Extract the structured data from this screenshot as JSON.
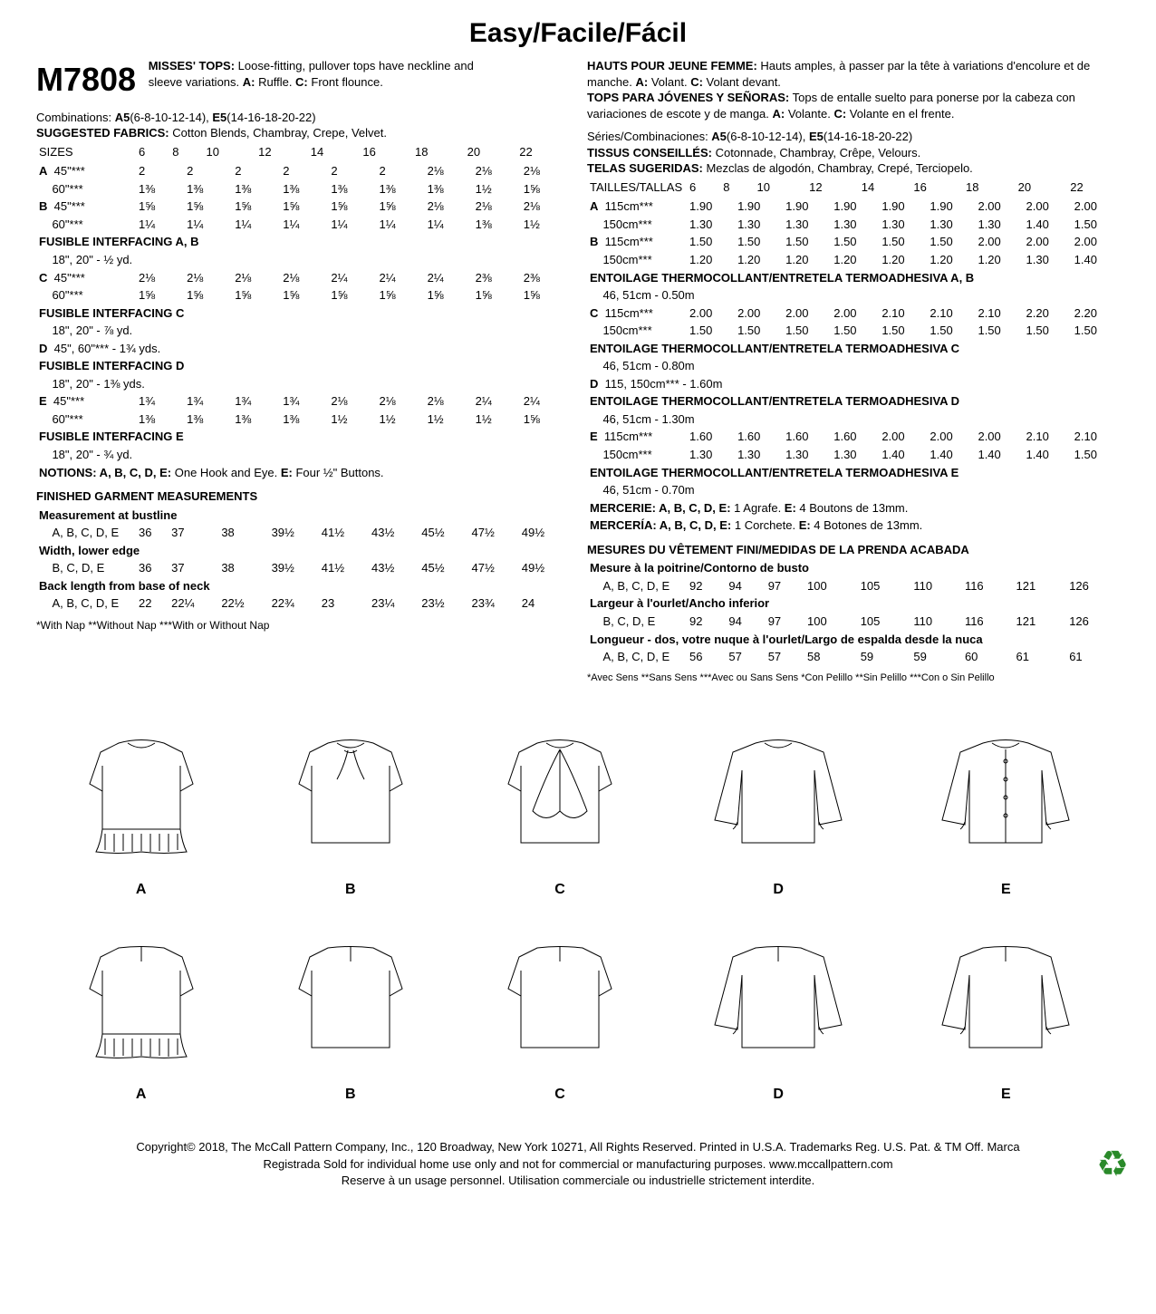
{
  "title": "Easy/Facile/Fácil",
  "pattern_number": "M7808",
  "desc_en": "<b>MISSES' TOPS:</b> Loose-fitting, pullover tops have neckline and sleeve variations. <b>A:</b> Ruffle. <b>C:</b> Front flounce.",
  "desc_fr": "<b>HAUTS POUR JEUNE FEMME:</b> Hauts amples, à passer par la tête à variations d'encolure et de manche. <b>A:</b> Volant. <b>C:</b> Volant devant.",
  "desc_es": "<b>TOPS PARA JÓVENES Y SEÑORAS:</b> Tops de entalle suelto para ponerse por la cabeza con variaciones de escote y de manga. <b>A:</b> Volante. <b>C:</b> Volante en el frente.",
  "combos_en": "Combinations: <b>A5</b>(6-8-10-12-14), <b>E5</b>(14-16-18-20-22)",
  "combos_fr": "Séries/Combinaciones: <b>A5</b>(6-8-10-12-14), <b>E5</b>(14-16-18-20-22)",
  "fabrics_en": "<b>SUGGESTED FABRICS:</b> Cotton Blends, Chambray, Crepe, Velvet.",
  "fabrics_fr": "<b>TISSUS CONSEILLÉS:</b> Cotonnade, Chambray, Crêpe, Velours.",
  "fabrics_es": "<b>TELAS SUGERIDAS:</b> Mezclas de algodón, Chambray, Crepé, Terciopelo.",
  "sizes_en_header": [
    "SIZES",
    "6",
    "8",
    "10",
    "12",
    "14",
    "16",
    "18",
    "20",
    "22"
  ],
  "sizes_fr_header": [
    "TAILLES/TALLAS",
    "6",
    "8",
    "10",
    "12",
    "14",
    "16",
    "18",
    "20",
    "22"
  ],
  "rows_en": [
    {
      "bold": "A",
      "label": "45\"***",
      "v": [
        "2",
        "2",
        "2",
        "2",
        "2",
        "2",
        "2⅛",
        "2⅛",
        "2⅛"
      ]
    },
    {
      "bold": "",
      "label": "60\"***",
      "v": [
        "1⅜",
        "1⅜",
        "1⅜",
        "1⅜",
        "1⅜",
        "1⅜",
        "1⅜",
        "1½",
        "1⅝"
      ]
    },
    {
      "bold": "B",
      "label": "45\"***",
      "v": [
        "1⅝",
        "1⅝",
        "1⅝",
        "1⅝",
        "1⅝",
        "1⅝",
        "2⅛",
        "2⅛",
        "2⅛"
      ]
    },
    {
      "bold": "",
      "label": "60\"***",
      "v": [
        "1¼",
        "1¼",
        "1¼",
        "1¼",
        "1¼",
        "1¼",
        "1¼",
        "1⅜",
        "1½"
      ]
    },
    {
      "span": "<b>FUSIBLE INTERFACING A, B</b>"
    },
    {
      "span": "&nbsp;&nbsp;&nbsp;&nbsp;18\", 20\" - ½ yd."
    },
    {
      "bold": "C",
      "label": "45\"***",
      "v": [
        "2⅛",
        "2⅛",
        "2⅛",
        "2⅛",
        "2¼",
        "2¼",
        "2¼",
        "2⅜",
        "2⅜"
      ]
    },
    {
      "bold": "",
      "label": "60\"***",
      "v": [
        "1⅝",
        "1⅝",
        "1⅝",
        "1⅝",
        "1⅝",
        "1⅝",
        "1⅝",
        "1⅝",
        "1⅝"
      ]
    },
    {
      "span": "<b>FUSIBLE INTERFACING C</b>"
    },
    {
      "span": "&nbsp;&nbsp;&nbsp;&nbsp;18\", 20\" - ⅞ yd."
    },
    {
      "span": "<b>D</b>&nbsp;&nbsp;45\", 60\"*** - 1¾ yds."
    },
    {
      "span": "<b>FUSIBLE INTERFACING D</b>"
    },
    {
      "span": "&nbsp;&nbsp;&nbsp;&nbsp;18\", 20\" - 1⅜ yds."
    },
    {
      "bold": "E",
      "label": "45\"***",
      "v": [
        "1¾",
        "1¾",
        "1¾",
        "1¾",
        "2⅛",
        "2⅛",
        "2⅛",
        "2¼",
        "2¼"
      ]
    },
    {
      "bold": "",
      "label": "60\"***",
      "v": [
        "1⅜",
        "1⅜",
        "1⅜",
        "1⅜",
        "1½",
        "1½",
        "1½",
        "1½",
        "1⅝"
      ]
    },
    {
      "span": "<b>FUSIBLE INTERFACING E</b>"
    },
    {
      "span": "&nbsp;&nbsp;&nbsp;&nbsp;18\", 20\" - ¾ yd."
    },
    {
      "span": "<b>NOTIONS: A, B, C, D, E:</b> One Hook and Eye. <b>E:</b> Four ½\" Buttons."
    }
  ],
  "rows_fr": [
    {
      "bold": "A",
      "label": "115cm***",
      "v": [
        "1.90",
        "1.90",
        "1.90",
        "1.90",
        "1.90",
        "1.90",
        "2.00",
        "2.00",
        "2.00"
      ]
    },
    {
      "bold": "",
      "label": "150cm***",
      "v": [
        "1.30",
        "1.30",
        "1.30",
        "1.30",
        "1.30",
        "1.30",
        "1.30",
        "1.40",
        "1.50"
      ]
    },
    {
      "bold": "B",
      "label": "115cm***",
      "v": [
        "1.50",
        "1.50",
        "1.50",
        "1.50",
        "1.50",
        "1.50",
        "2.00",
        "2.00",
        "2.00"
      ]
    },
    {
      "bold": "",
      "label": "150cm***",
      "v": [
        "1.20",
        "1.20",
        "1.20",
        "1.20",
        "1.20",
        "1.20",
        "1.20",
        "1.30",
        "1.40"
      ]
    },
    {
      "span": "<b>ENTOILAGE THERMOCOLLANT/ENTRETELA TERMOADHESIVA A, B</b>"
    },
    {
      "span": "&nbsp;&nbsp;&nbsp;&nbsp;46, 51cm - 0.50m"
    },
    {
      "bold": "C",
      "label": "115cm***",
      "v": [
        "2.00",
        "2.00",
        "2.00",
        "2.00",
        "2.10",
        "2.10",
        "2.10",
        "2.20",
        "2.20"
      ]
    },
    {
      "bold": "",
      "label": "150cm***",
      "v": [
        "1.50",
        "1.50",
        "1.50",
        "1.50",
        "1.50",
        "1.50",
        "1.50",
        "1.50",
        "1.50"
      ]
    },
    {
      "span": "<b>ENTOILAGE THERMOCOLLANT/ENTRETELA TERMOADHESIVA C</b>"
    },
    {
      "span": "&nbsp;&nbsp;&nbsp;&nbsp;46, 51cm - 0.80m"
    },
    {
      "span": "<b>D</b>&nbsp;&nbsp;115, 150cm*** - 1.60m"
    },
    {
      "span": "<b>ENTOILAGE THERMOCOLLANT/ENTRETELA TERMOADHESIVA D</b>"
    },
    {
      "span": "&nbsp;&nbsp;&nbsp;&nbsp;46, 51cm - 1.30m"
    },
    {
      "bold": "E",
      "label": "115cm***",
      "v": [
        "1.60",
        "1.60",
        "1.60",
        "1.60",
        "2.00",
        "2.00",
        "2.00",
        "2.10",
        "2.10"
      ]
    },
    {
      "bold": "",
      "label": "150cm***",
      "v": [
        "1.30",
        "1.30",
        "1.30",
        "1.30",
        "1.40",
        "1.40",
        "1.40",
        "1.40",
        "1.50"
      ]
    },
    {
      "span": "<b>ENTOILAGE THERMOCOLLANT/ENTRETELA TERMOADHESIVA E</b>"
    },
    {
      "span": "&nbsp;&nbsp;&nbsp;&nbsp;46, 51cm - 0.70m"
    },
    {
      "span": "<b>MERCERIE: A, B, C, D, E:</b> 1 Agrafe. <b>E:</b> 4 Boutons de 13mm."
    },
    {
      "span": "<b>MERCERÍA: A, B, C, D, E:</b> 1 Corchete. <b>E:</b> 4 Botones de 13mm."
    }
  ],
  "fgm_en_title": "FINISHED GARMENT MEASUREMENTS",
  "fgm_fr_title": "MESURES DU VÊTEMENT FINI/MEDIDAS DE LA PRENDA ACABADA",
  "fgm_en": [
    {
      "span": "<b>Measurement at bustline</b>"
    },
    {
      "bold": "",
      "label": "A, B, C, D, E",
      "v": [
        "36",
        "37",
        "38",
        "39½",
        "41½",
        "43½",
        "45½",
        "47½",
        "49½"
      ]
    },
    {
      "span": "<b>Width, lower edge</b>"
    },
    {
      "bold": "",
      "label": "B, C, D, E",
      "v": [
        "36",
        "37",
        "38",
        "39½",
        "41½",
        "43½",
        "45½",
        "47½",
        "49½"
      ]
    },
    {
      "span": "<b>Back length from base of neck</b>"
    },
    {
      "bold": "",
      "label": "A, B, C, D, E",
      "v": [
        "22",
        "22¼",
        "22½",
        "22¾",
        "23",
        "23¼",
        "23½",
        "23¾",
        "24"
      ]
    }
  ],
  "fgm_fr": [
    {
      "span": "<b>Mesure à la poitrine/Contorno de busto</b>"
    },
    {
      "bold": "",
      "label": "A, B, C, D, E",
      "v": [
        "92",
        "94",
        "97",
        "100",
        "105",
        "110",
        "116",
        "121",
        "126"
      ]
    },
    {
      "span": "<b>Largeur à l'ourlet/Ancho inferior</b>"
    },
    {
      "bold": "",
      "label": "B, C, D, E",
      "v": [
        "92",
        "94",
        "97",
        "100",
        "105",
        "110",
        "116",
        "121",
        "126"
      ]
    },
    {
      "span": "<b>Longueur - dos, votre nuque à l'ourlet/Largo de espalda desde la nuca</b>"
    },
    {
      "bold": "",
      "label": "A, B, C, D, E",
      "v": [
        "56",
        "57",
        "57",
        "58",
        "59",
        "59",
        "60",
        "61",
        "61"
      ]
    }
  ],
  "nap_note_en": "*With Nap **Without Nap ***With or Without Nap",
  "nap_note_fr": "*Avec Sens **Sans Sens ***Avec ou Sans Sens  *Con Pelillo **Sin Pelillo ***Con o Sin Pelillo",
  "illus_labels_row1": [
    "A",
    "B",
    "C",
    "D",
    "E"
  ],
  "illus_labels_row2": [
    "A",
    "B",
    "C",
    "D",
    "E"
  ],
  "footer_line1": "Copyright© 2018, The McCall Pattern Company, Inc., 120 Broadway, New York 10271, All Rights Reserved. Printed in U.S.A. Trademarks Reg. U.S. Pat. & TM Off. Marca",
  "footer_line2": "Registrada Sold for individual home use only and not for commercial or manufacturing purposes. www.mccallpattern.com",
  "footer_line3": "Reserve à un usage personnel. Utilisation commerciale ou industrielle strictement interdite."
}
